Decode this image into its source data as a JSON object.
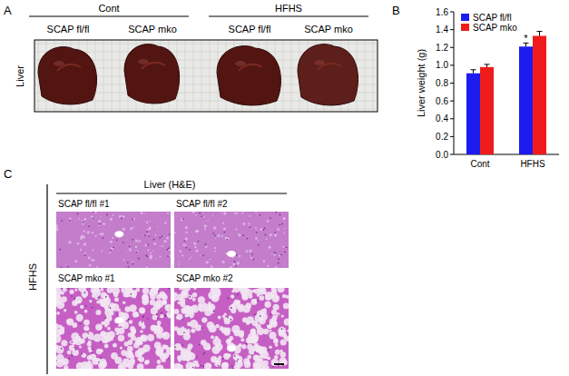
{
  "panel_labels": [
    "A",
    "B",
    "C"
  ],
  "panel_a": {
    "groups": [
      {
        "label": "Cont",
        "columns": [
          "SCAP fl/fl",
          "SCAP mko"
        ]
      },
      {
        "label": "HFHS",
        "columns": [
          "SCAP fl/fl",
          "SCAP mko"
        ]
      }
    ],
    "row_label": "Liver"
  },
  "chart_data": {
    "type": "bar",
    "y_label": "Liver weight (g)",
    "categories": [
      "Cont",
      "HFHS"
    ],
    "series": [
      {
        "name": "SCAP fl/fl",
        "color": "#1c1cf0",
        "values": [
          0.91,
          1.21
        ],
        "errors": [
          0.04,
          0.04
        ]
      },
      {
        "name": "SCAP mko",
        "color": "#f01c1c",
        "values": [
          0.98,
          1.33
        ],
        "errors": [
          0.03,
          0.05
        ]
      }
    ],
    "ylim": [
      0,
      1.6
    ],
    "yticks": [
      {
        "value": 0,
        "label": "0.0"
      },
      0.2,
      0.4,
      0.6,
      0.8,
      {
        "value": 1,
        "label": "1.0"
      },
      1.2,
      1.4,
      1.6
    ],
    "legend": "upper left",
    "annotations": [
      {
        "text": "*",
        "at": "HFHS",
        "series": "SCAP fl/fl"
      }
    ]
  },
  "panel_c": {
    "title": "Liver (H&E)",
    "row_label": "HFHS",
    "images": [
      [
        "SCAP fl/fl #1",
        "SCAP fl/fl #2"
      ],
      [
        "SCAP mko #1",
        "SCAP mko #2"
      ]
    ]
  }
}
